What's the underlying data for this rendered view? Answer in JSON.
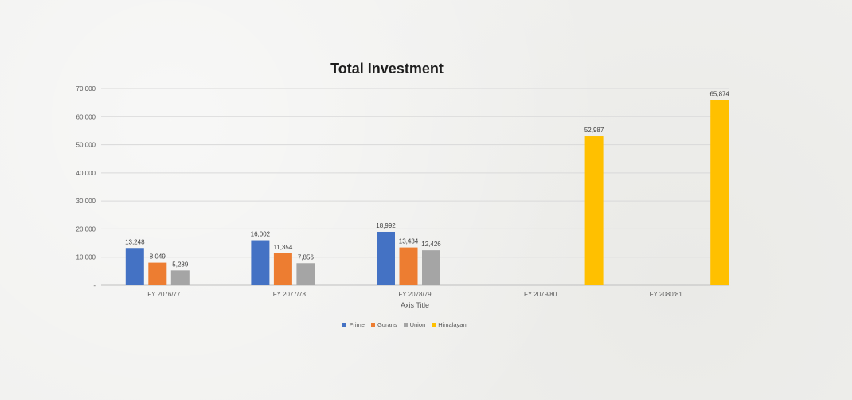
{
  "chart_data": {
    "type": "bar",
    "title": "Total Investment",
    "xlabel": "Axis Title",
    "ylabel": "",
    "categories": [
      "FY 2076/77",
      "FY 2077/78",
      "FY 2078/79",
      "FY 2079/80",
      "FY 2080/81"
    ],
    "series": [
      {
        "name": "Prime",
        "color": "#4472c4",
        "values": [
          13248,
          16002,
          18992,
          null,
          null
        ],
        "labels": [
          "13,248",
          "16,002",
          "18,992",
          "",
          ""
        ]
      },
      {
        "name": "Gurans",
        "color": "#ed7d31",
        "values": [
          8049,
          11354,
          13434,
          null,
          null
        ],
        "labels": [
          "8,049",
          "11,354",
          "13,434",
          "",
          ""
        ]
      },
      {
        "name": "Union",
        "color": "#a5a5a5",
        "values": [
          5289,
          7856,
          12426,
          null,
          null
        ],
        "labels": [
          "5,289",
          "7,856",
          "12,426",
          "",
          ""
        ]
      },
      {
        "name": "Himalayan",
        "color": "#ffc000",
        "values": [
          null,
          null,
          null,
          52987,
          65874
        ],
        "labels": [
          "",
          "",
          "",
          "52,987",
          "65,874"
        ]
      }
    ],
    "ylim": [
      0,
      70000
    ],
    "yticks": [
      0,
      10000,
      20000,
      30000,
      40000,
      50000,
      60000,
      70000
    ],
    "ytick_labels": [
      "-",
      "10,000",
      "20,000",
      "30,000",
      "40,000",
      "50,000",
      "60,000",
      "70,000"
    ],
    "grid": true,
    "legend_position": "bottom"
  }
}
